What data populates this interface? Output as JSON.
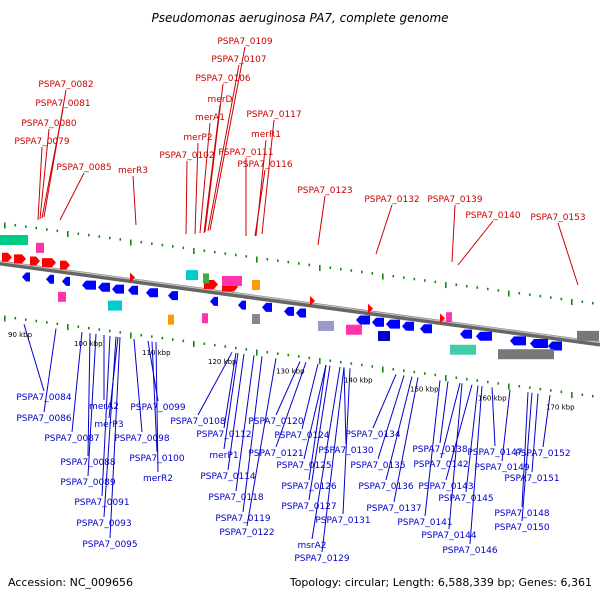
{
  "title": "Pseudomonas aeruginosa PA7, complete genome",
  "footer": {
    "accession": "Accession: NC_009656",
    "summary": "Topology: circular; Length: 6,588,339 bp; Genes: 6,361"
  },
  "scale_ticks": [
    "90 kbp",
    "100 kbp",
    "110 kbp",
    "120 kbp",
    "130 kbp",
    "140 kbp",
    "150 kbp",
    "160 kbp",
    "170 kbp"
  ],
  "top_labels": [
    "PSPA7_0109",
    "PSPA7_0107",
    "PSPA7_0106",
    "merD",
    "PSPA7_0082",
    "PSPA7_0081",
    "merA1",
    "PSPA7_0117",
    "PSPA7_0080",
    "merP2",
    "merR1",
    "PSPA7_0079",
    "PSPA7_0102",
    "PSPA7_0111",
    "PSPA7_0085",
    "PSPA7_0116",
    "merR3",
    "PSPA7_0123",
    "PSPA7_0132",
    "PSPA7_0139",
    "PSPA7_0140",
    "PSPA7_0153"
  ],
  "bottom_labels": [
    "PSPA7_0084",
    "merA2",
    "PSPA7_0099",
    "PSPA7_0086",
    "merP3",
    "PSPA7_0108",
    "PSPA7_0120",
    "PSPA7_0087",
    "PSPA7_0098",
    "PSPA7_0112",
    "PSPA7_0124",
    "PSPA7_0134",
    "PSPA7_0121",
    "PSPA7_0130",
    "PSPA7_0138",
    "PSPA7_0147",
    "PSPA7_0152",
    "PSPA7_0088",
    "PSPA7_0100",
    "merP1",
    "PSPA7_0125",
    "PSPA7_0135",
    "PSPA7_0142",
    "PSPA7_0149",
    "merR2",
    "PSPA7_0114",
    "PSPA7_0089",
    "PSPA7_0126",
    "PSPA7_0136",
    "PSPA7_0143",
    "PSPA7_0151",
    "PSPA7_0118",
    "PSPA7_0091",
    "PSPA7_0145",
    "PSPA7_0127",
    "PSPA7_0137",
    "PSPA7_0119",
    "PSPA7_0131",
    "PSPA7_0148",
    "PSPA7_0093",
    "PSPA7_0141",
    "PSPA7_0122",
    "PSPA7_0144",
    "PSPA7_0150",
    "msrA2",
    "PSPA7_0095",
    "PSPA7_0146",
    "PSPA7_0129"
  ],
  "colors": {
    "top_label": "#cc0000",
    "bottom_label": "#0000cc",
    "forward_gene": "#ff0000",
    "reverse_gene": "#0000ff",
    "tick": "#118811",
    "backbone": "#888888"
  }
}
